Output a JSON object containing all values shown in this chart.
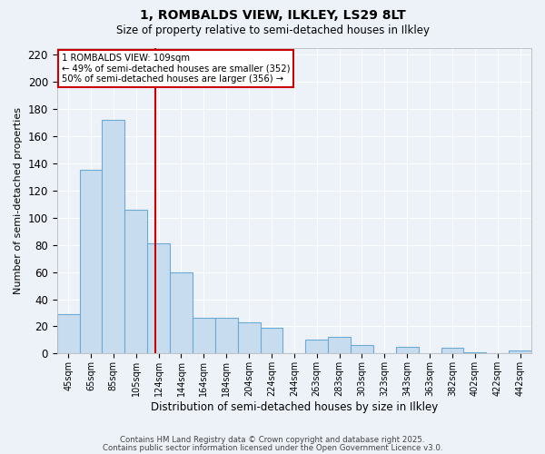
{
  "title": "1, ROMBALDS VIEW, ILKLEY, LS29 8LT",
  "subtitle": "Size of property relative to semi-detached houses in Ilkley",
  "xlabel": "Distribution of semi-detached houses by size in Ilkley",
  "ylabel": "Number of semi-detached properties",
  "categories": [
    "45sqm",
    "65sqm",
    "85sqm",
    "105sqm",
    "124sqm",
    "144sqm",
    "164sqm",
    "184sqm",
    "204sqm",
    "224sqm",
    "244sqm",
    "263sqm",
    "283sqm",
    "303sqm",
    "323sqm",
    "343sqm",
    "363sqm",
    "382sqm",
    "402sqm",
    "422sqm",
    "442sqm"
  ],
  "values": [
    29,
    135,
    172,
    106,
    81,
    60,
    26,
    26,
    23,
    19,
    0,
    10,
    12,
    6,
    0,
    5,
    0,
    4,
    1,
    0,
    2
  ],
  "bar_color": "#c8dcf0",
  "bar_edge_color": "#6aaad4",
  "vline_color": "#cc0000",
  "vline_index": 3,
  "annotation_line1": "1 ROMBALDS VIEW: 109sqm",
  "annotation_line2": "← 49% of semi-detached houses are smaller (352)",
  "annotation_line3": "50% of semi-detached houses are larger (356) →",
  "annotation_box_edge_color": "#cc0000",
  "ylim": [
    0,
    225
  ],
  "yticks": [
    0,
    20,
    40,
    60,
    80,
    100,
    120,
    140,
    160,
    180,
    200,
    220
  ],
  "bg_color": "#edf2f9",
  "grid_color": "#ffffff",
  "title_fontsize": 10,
  "subtitle_fontsize": 8.5,
  "footer1": "Contains HM Land Registry data © Crown copyright and database right 2025.",
  "footer2": "Contains public sector information licensed under the Open Government Licence v3.0."
}
